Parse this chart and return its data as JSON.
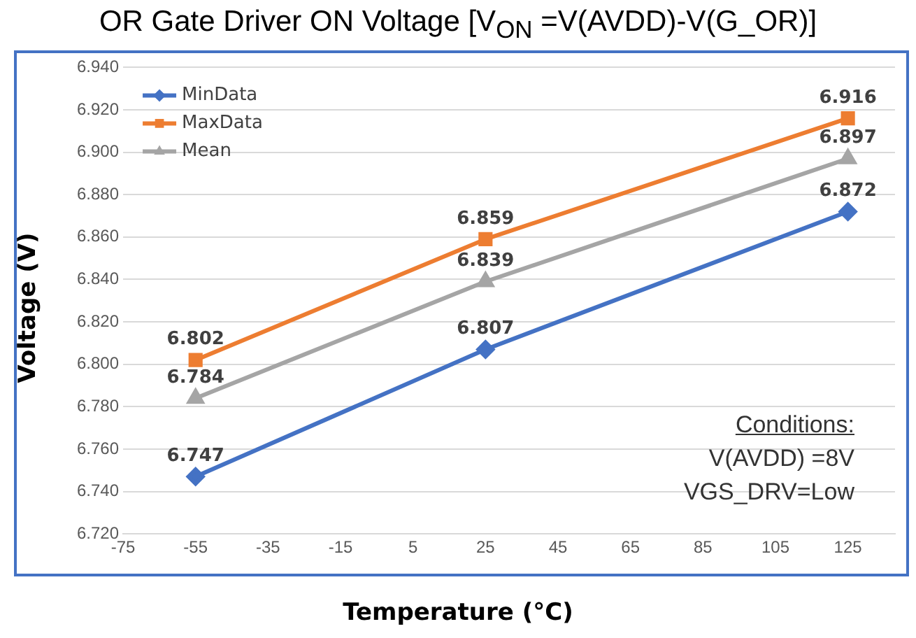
{
  "chart_data": {
    "type": "line",
    "title": "OR Gate Driver ON Voltage [V$_{ON}$ =V(AVDD)-V(G_OR)]",
    "xlabel": "Temperature (°C)",
    "ylabel": "Voltage (V)",
    "x": [
      -55,
      25,
      125
    ],
    "series": [
      {
        "name": "MinData",
        "color": "#4472c4",
        "marker": "diamond",
        "values": [
          6.747,
          6.807,
          6.872
        ]
      },
      {
        "name": "MaxData",
        "color": "#ed7d31",
        "marker": "square",
        "values": [
          6.802,
          6.859,
          6.916
        ]
      },
      {
        "name": "Mean",
        "color": "#a5a5a5",
        "marker": "triangle",
        "values": [
          6.784,
          6.839,
          6.897
        ]
      }
    ],
    "xlim": [
      -75,
      138
    ],
    "xticks": [
      -75,
      -55,
      -35,
      -15,
      5,
      25,
      45,
      65,
      85,
      105,
      125
    ],
    "ylim": [
      6.72,
      6.94
    ],
    "yticks": [
      {
        "value": 6.72,
        "label": "6.720"
      },
      {
        "value": 6.74,
        "label": "6.740"
      },
      {
        "value": 6.76,
        "label": "6.760"
      },
      {
        "value": 6.78,
        "label": "6.780"
      },
      {
        "value": 6.8,
        "label": "6.800"
      },
      {
        "value": 6.82,
        "label": "6.820"
      },
      {
        "value": 6.84,
        "label": "6.840"
      },
      {
        "value": 6.86,
        "label": "6.860"
      },
      {
        "value": 6.88,
        "label": "6.880"
      },
      {
        "value": 6.9,
        "label": "6.900"
      },
      {
        "value": 6.92,
        "label": "6.920"
      },
      {
        "value": 6.94,
        "label": "6.940"
      }
    ],
    "grid": "y",
    "legend": "top left",
    "data_labels": true,
    "annotations": [
      "Conditions:",
      "V(AVDD) =8V",
      "VGS_DRV=Low"
    ]
  }
}
